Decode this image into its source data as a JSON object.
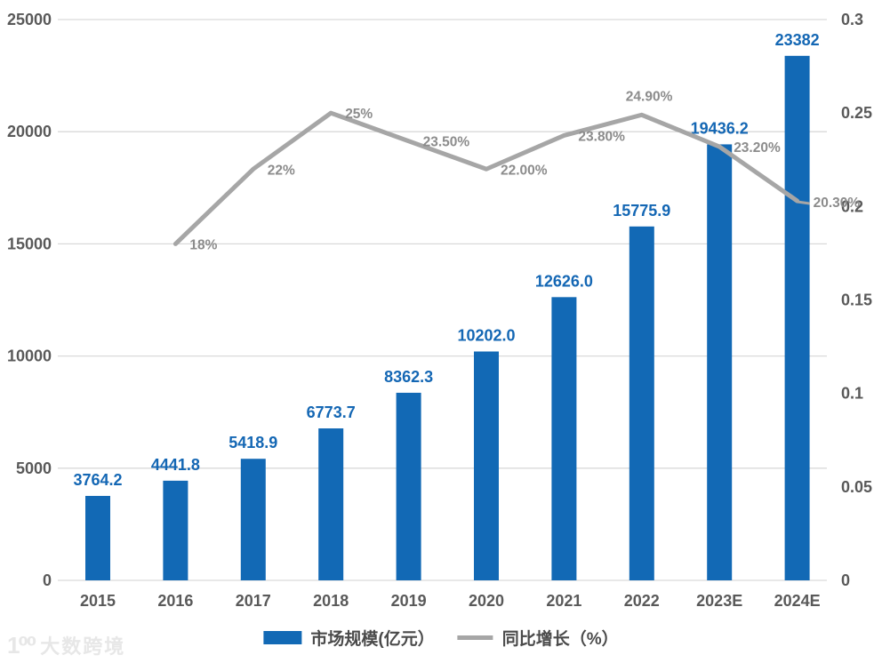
{
  "chart_data": {
    "type": "bar",
    "subtype": "bar-line-combo",
    "categories": [
      "2015",
      "2016",
      "2017",
      "2018",
      "2019",
      "2020",
      "2021",
      "2022",
      "2023E",
      "2024E"
    ],
    "series": [
      {
        "name": "市场规模(亿元）",
        "type": "bar",
        "axis": "left",
        "color": "#1269B5",
        "label_color": "#1467B4",
        "values": [
          3764.2,
          4441.8,
          5418.9,
          6773.7,
          8362.3,
          10202.0,
          12626.0,
          15775.9,
          19436.2,
          23382
        ],
        "labels": [
          "3764.2",
          "4441.8",
          "5418.9",
          "6773.7",
          "8362.3",
          "10202.0",
          "12626.0",
          "15775.9",
          "19436.2",
          "23382"
        ]
      },
      {
        "name": "同比增长（%）",
        "type": "line",
        "axis": "right",
        "color": "#A6A6A6",
        "label_color": "#8C8C8C",
        "values": [
          null,
          0.18,
          0.22,
          0.25,
          0.235,
          0.22,
          0.238,
          0.249,
          0.232,
          0.203
        ],
        "labels": [
          null,
          "18%",
          "22%",
          "25%",
          "23.50%",
          "22.00%",
          "23.80%",
          "24.90%",
          "23.20%",
          "20.30%"
        ],
        "label_offsets": [
          null,
          null,
          null,
          null,
          null,
          null,
          null,
          {
            "dx": -18,
            "dy": -16,
            "anchor": "start"
          },
          null,
          {
            "dx": 18,
            "dy": 7,
            "anchor": "start"
          }
        ]
      }
    ],
    "title": "",
    "xlabel": "",
    "ylabel": "",
    "left_axis": {
      "ticks": [
        "0",
        "5000",
        "10000",
        "15000",
        "20000",
        "25000"
      ],
      "min": 0,
      "max": 25000
    },
    "right_axis": {
      "ticks": [
        "0",
        "0.05",
        "0.1",
        "0.15",
        "0.2",
        "0.25",
        "0.3"
      ],
      "min": 0,
      "max": 0.3
    },
    "grid": "horizontal",
    "legend_position": "bottom",
    "colors": {
      "grid": "#D9D9D9",
      "axis_text": "#595959",
      "legend_text": "#4A4A4A"
    }
  },
  "legend": {
    "bar_label": "市场规模(亿元）",
    "line_label": "同比增长（%）"
  },
  "watermark": {
    "logo": "1⁰⁰",
    "text": "大数跨境"
  }
}
